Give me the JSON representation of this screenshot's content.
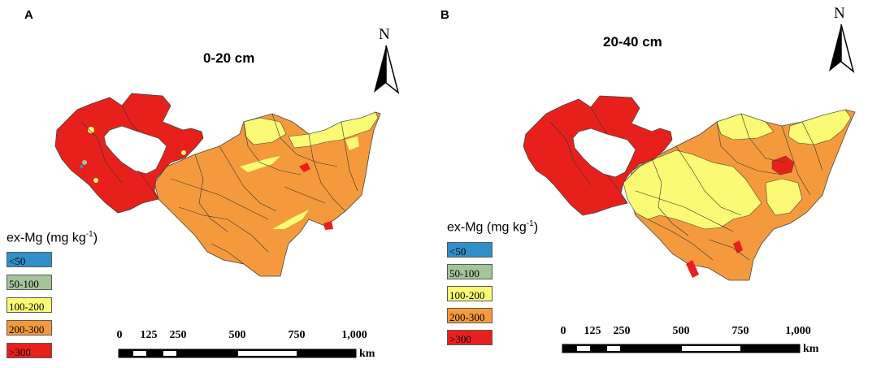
{
  "panels": [
    {
      "letter": "A",
      "depth": "0-20 cm",
      "north": "N"
    },
    {
      "letter": "B",
      "depth": "20-40 cm",
      "north": "N"
    }
  ],
  "legend": {
    "title": "ex-Mg (mg kg",
    "title_sup": "-1",
    "title_close": ")",
    "classes": [
      {
        "label": "<50",
        "color": "#2f8fc8"
      },
      {
        "label": "50-100",
        "color": "#a4c49a"
      },
      {
        "label": "100-200",
        "color": "#fafa74"
      },
      {
        "label": "200-300",
        "color": "#f59a3c"
      },
      {
        "label": ">300",
        "color": "#e8201c"
      }
    ]
  },
  "scale_bar": {
    "ticks": [
      "0",
      "125",
      "250",
      "500",
      "750",
      "1,000"
    ],
    "tick_values": [
      0,
      125,
      250,
      500,
      750,
      1000
    ],
    "unit": "km"
  }
}
